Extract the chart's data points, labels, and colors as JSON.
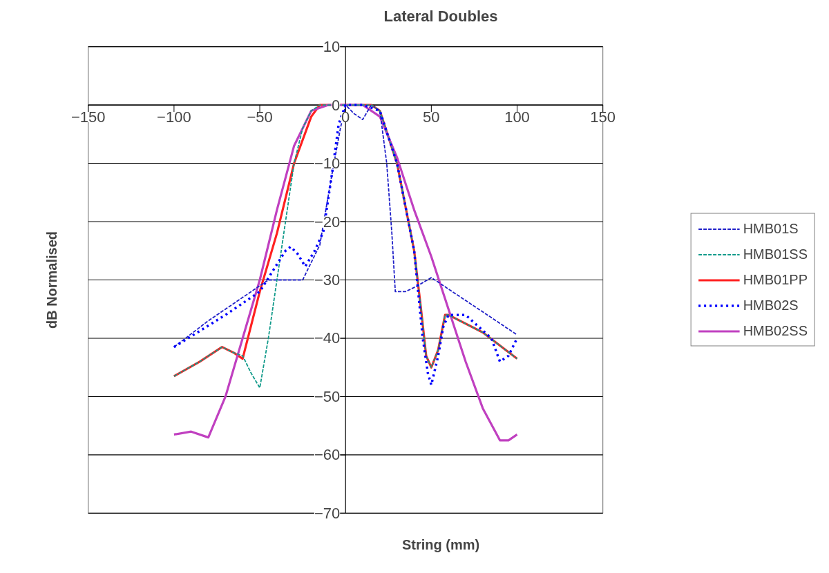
{
  "chart_data": {
    "type": "line",
    "title": "Lateral Doubles",
    "xlabel": "String (mm)",
    "ylabel": "dB Normalised",
    "xlim": [
      -150,
      150
    ],
    "xticks": [
      -150,
      -100,
      -50,
      0,
      50,
      100,
      150
    ],
    "ylim": [
      -70,
      10
    ],
    "yticks": [
      -70,
      -60,
      -50,
      -40,
      -30,
      -20,
      -10,
      0,
      10
    ],
    "grid": "y",
    "legend": "right",
    "marker": "none",
    "series": [
      {
        "name": "HMB01S",
        "color": "#1f1fc8",
        "line_style": "dashed",
        "x": [
          -100,
          -80,
          -60,
          -45,
          -35,
          -25,
          -15,
          -8,
          -3,
          0,
          5,
          10,
          15,
          20,
          24,
          27,
          29,
          35,
          42,
          50,
          75,
          100
        ],
        "values": [
          -41.5,
          -37,
          -33,
          -30,
          -30,
          -30,
          -24,
          -12,
          -4,
          0,
          -1.5,
          -2.5,
          0,
          -1,
          -10,
          -22,
          -32,
          -32,
          -31,
          -29.6,
          -34.5,
          -39.4
        ]
      },
      {
        "name": "HMB01SS",
        "color": "#119a8a",
        "line_style": "dashed",
        "x": [
          -100,
          -85,
          -72,
          -65,
          -60,
          -55,
          -50,
          -45,
          -40,
          -35,
          -30,
          -25,
          -20,
          -15,
          0,
          15,
          20,
          30,
          40,
          44,
          47,
          50,
          54,
          58,
          60,
          80,
          100
        ],
        "values": [
          -46.5,
          -44,
          -41.5,
          -42.5,
          -43,
          -46,
          -48.5,
          -40,
          -30,
          -20,
          -10,
          -4,
          -1,
          0,
          0,
          0,
          -1,
          -10,
          -25,
          -35,
          -43,
          -45,
          -42,
          -36,
          -36,
          -39,
          -43.5
        ]
      },
      {
        "name": "HMB01PP",
        "color": "#ff2020",
        "line_style": "solid",
        "x": [
          -100,
          -85,
          -72,
          -65,
          -60,
          -50,
          -40,
          -30,
          -20,
          -15,
          0,
          15,
          20,
          30,
          40,
          44,
          47,
          50,
          54,
          58,
          60,
          80,
          100
        ],
        "values": [
          -46.5,
          -44,
          -41.5,
          -42.5,
          -43.5,
          -32,
          -22,
          -10,
          -2,
          0,
          0,
          0,
          -1,
          -10,
          -25,
          -35,
          -43,
          -45,
          -42,
          -36,
          -36,
          -39,
          -43.5
        ]
      },
      {
        "name": "HMB02S",
        "color": "#0000ff",
        "line_style": "dotted",
        "x": [
          -100,
          -70,
          -50,
          -35,
          -32,
          -28,
          -23.5,
          -18,
          -13,
          -8,
          -4,
          0,
          10,
          20,
          30,
          40,
          45,
          48,
          50,
          54,
          57,
          60,
          70,
          85,
          90,
          95,
          100
        ],
        "values": [
          -41.5,
          -36,
          -32,
          -25,
          -24.3,
          -25.5,
          -27.7,
          -25,
          -21.8,
          -12,
          -3.3,
          0,
          0,
          -1,
          -10,
          -25,
          -40,
          -46,
          -48,
          -43,
          -38,
          -36,
          -36,
          -40,
          -44,
          -43,
          -40
        ]
      },
      {
        "name": "HMB02SS",
        "color": "#c040c0",
        "line_style": "solid",
        "x": [
          -100,
          -90,
          -80,
          -70,
          -60,
          -50,
          -40,
          -30,
          -20,
          -10,
          10,
          20,
          30,
          40,
          50,
          60,
          70,
          80,
          90,
          95,
          100
        ],
        "values": [
          -56.5,
          -56,
          -57,
          -50,
          -40,
          -30,
          -18,
          -7,
          -1,
          0,
          0,
          -2,
          -9,
          -18,
          -26,
          -35,
          -44,
          -52,
          -57.5,
          -57.5,
          -56.5
        ]
      }
    ]
  }
}
